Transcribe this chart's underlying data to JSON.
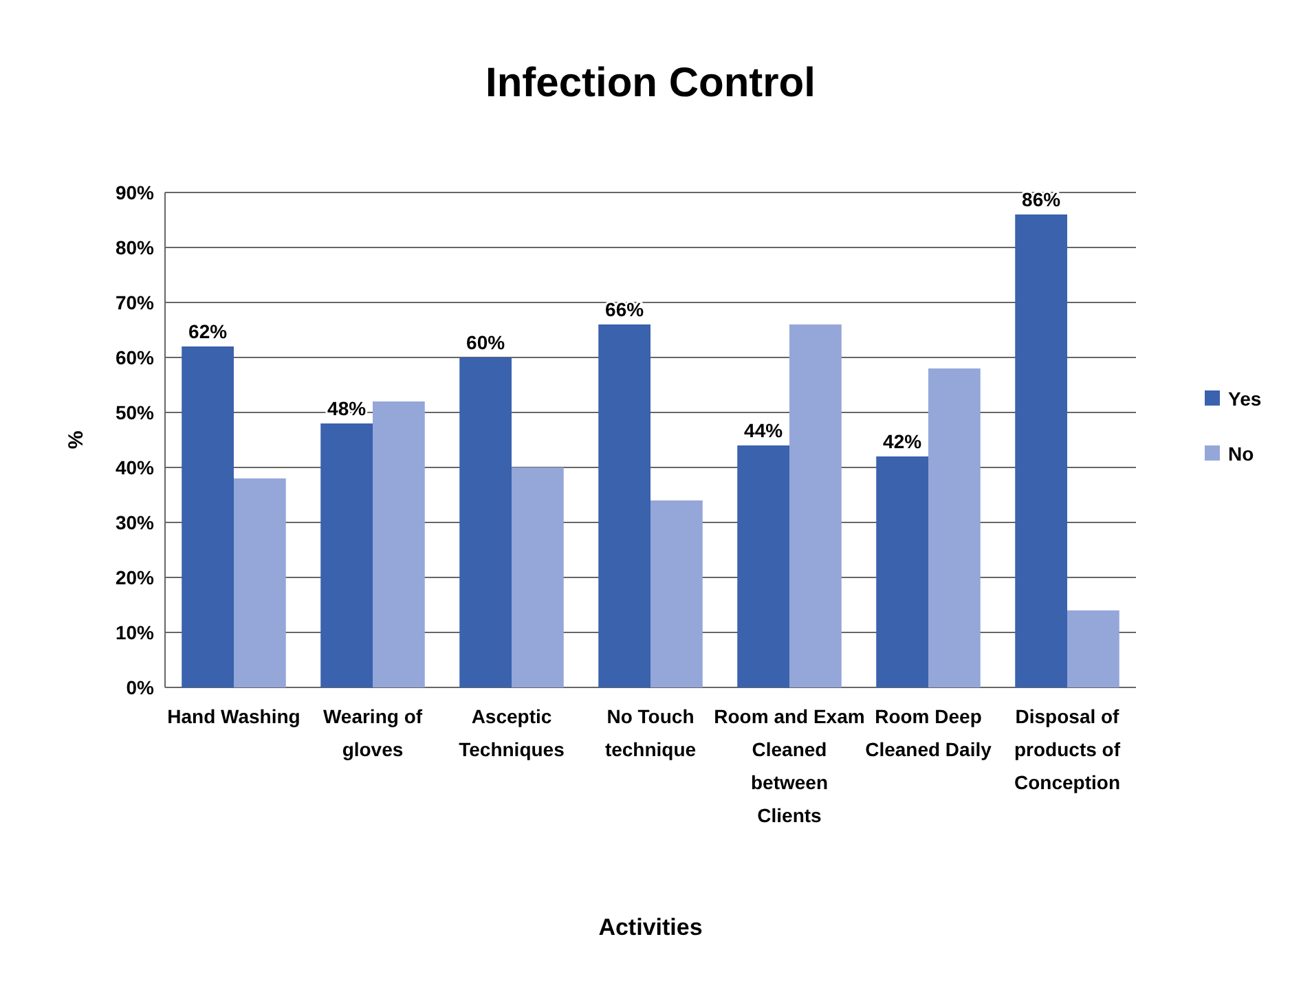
{
  "chart_data": {
    "type": "bar",
    "title": "Infection Control",
    "xlabel": "Activities",
    "ylabel": "%",
    "categories": [
      "Hand Washing",
      "Wearing of gloves",
      "Asceptic Techniques",
      "No Touch technique",
      "Room and Exam Cleaned between Clients",
      "Room Deep Cleaned Daily",
      "Disposal of products of Conception"
    ],
    "series": [
      {
        "name": "Yes",
        "color": "#3a62ad",
        "values": [
          62,
          48,
          60,
          66,
          44,
          42,
          86
        ],
        "value_labels": [
          "62%",
          "48%",
          "60%",
          "66%",
          "44%",
          "42%",
          "86%"
        ]
      },
      {
        "name": "No",
        "color": "#95a6d9",
        "values": [
          38,
          52,
          40,
          34,
          66,
          58,
          14
        ]
      }
    ],
    "ylim": [
      0,
      90
    ],
    "yticks": [
      {
        "value": 0,
        "label": "0%"
      },
      {
        "value": 10,
        "label": "10%"
      },
      {
        "value": 20,
        "label": "20%"
      },
      {
        "value": 30,
        "label": "30%"
      },
      {
        "value": 40,
        "label": "40%"
      },
      {
        "value": 50,
        "label": "50%"
      },
      {
        "value": 60,
        "label": "60%"
      },
      {
        "value": 70,
        "label": "70%"
      },
      {
        "value": 80,
        "label": "80%"
      },
      {
        "value": 90,
        "label": "90%"
      }
    ],
    "grid": "y",
    "legend": "right"
  }
}
